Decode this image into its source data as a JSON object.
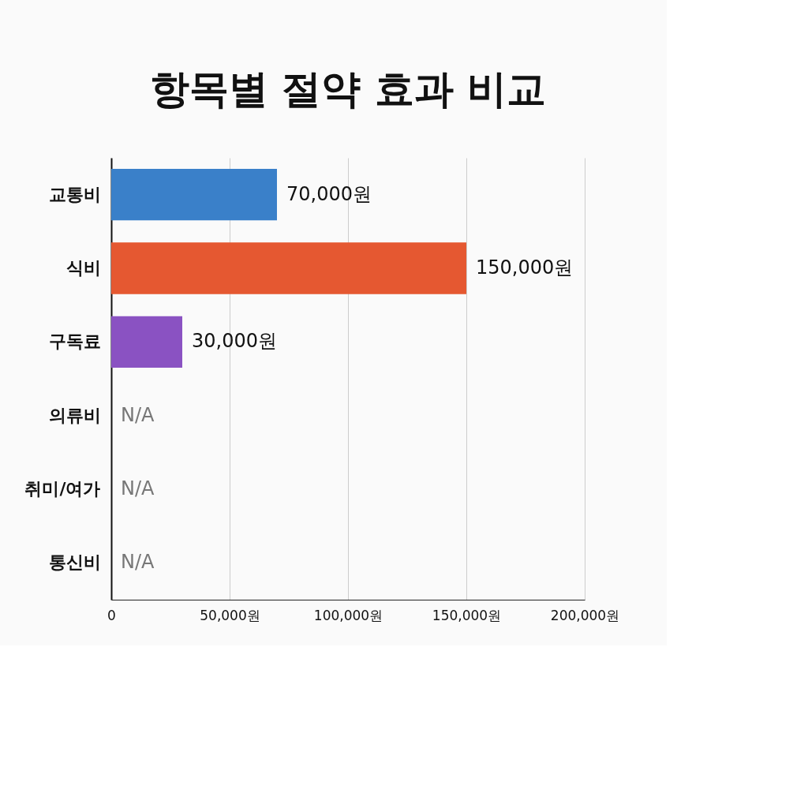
{
  "chart_data": {
    "type": "bar",
    "orientation": "horizontal",
    "title": "항목별 절약 효과 비교",
    "categories": [
      "교통비",
      "식비",
      "구독료",
      "의류비",
      "취미/여가",
      "통신비"
    ],
    "values": [
      70000,
      150000,
      30000,
      null,
      null,
      null
    ],
    "colors": [
      "#3a80c9",
      "#e55831",
      "#8a52c2",
      "#4a7ec6",
      "#5cae4c",
      "#bdbdbd"
    ],
    "value_labels": [
      "70,000원",
      "150,000원",
      "30,000원",
      "N/A",
      "N/A",
      "N/A"
    ],
    "xlim": [
      0,
      200000
    ],
    "xticks": [
      0,
      {
        "value": 50000,
        "label": "50,000원"
      },
      {
        "value": 100000,
        "label": "100,000원"
      },
      {
        "value": 150000,
        "label": "150,000원"
      },
      {
        "value": 200000,
        "label": "200,000원"
      }
    ],
    "grid": "x"
  }
}
